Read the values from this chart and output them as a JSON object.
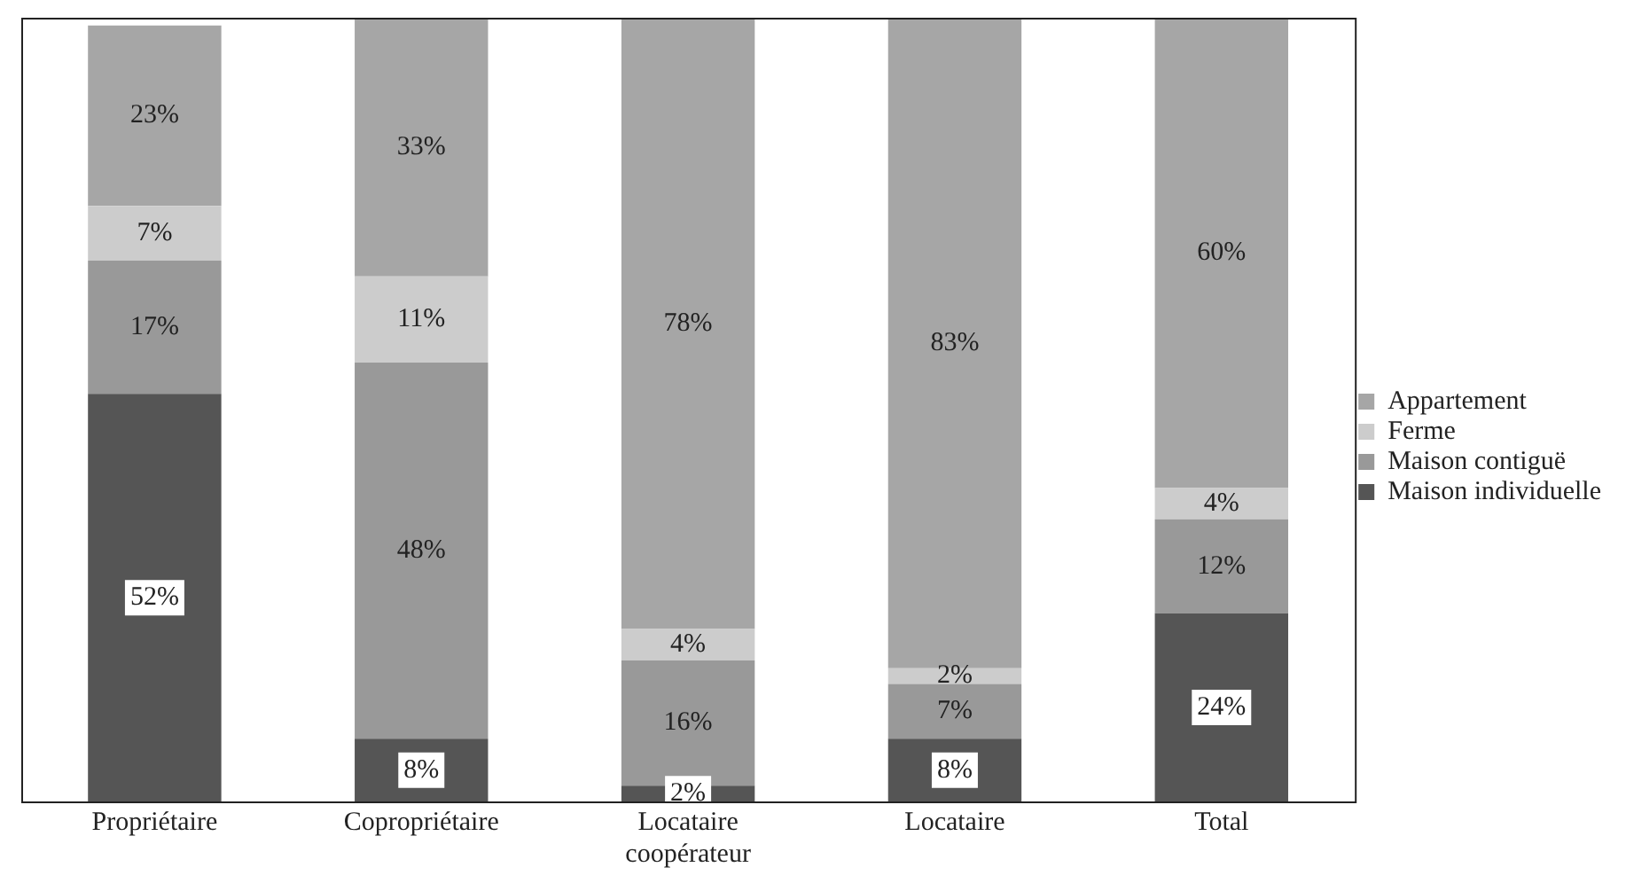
{
  "chart_data": {
    "type": "bar",
    "stacked": true,
    "legend": "right",
    "tick_labels": "x",
    "categories": [
      "Propriétaire",
      "Copropriétaire",
      "Locataire coopérateur",
      "Locataire",
      "Total"
    ],
    "series": [
      {
        "name": "Maison individuelle",
        "color": "#555555",
        "values": [
          52,
          8,
          2,
          8,
          24
        ],
        "value_labels": [
          "52%",
          "8%",
          "2%",
          "8%",
          "24%"
        ]
      },
      {
        "name": "Maison contiguë",
        "color": "#999999",
        "values": [
          17,
          48,
          16,
          7,
          12
        ],
        "value_labels": [
          "17%",
          "48%",
          "16%",
          "7%",
          "12%"
        ]
      },
      {
        "name": "Ferme",
        "color": "#cccccc",
        "values": [
          7,
          11,
          4,
          2,
          4
        ],
        "value_labels": [
          "7%",
          "11%",
          "4%",
          "2%",
          "4%"
        ]
      },
      {
        "name": "Appartement",
        "color": "#a6a6a6",
        "values": [
          23,
          33,
          78,
          83,
          60
        ],
        "value_labels": [
          "23%",
          "33%",
          "78%",
          "83%",
          "60%"
        ]
      }
    ]
  }
}
